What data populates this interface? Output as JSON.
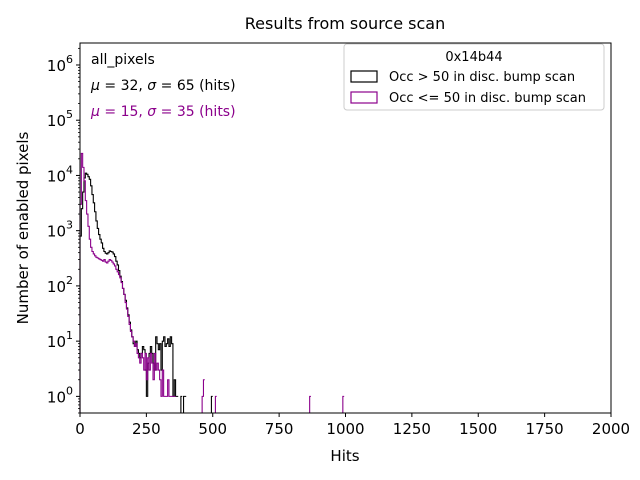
{
  "chart_data": {
    "type": "histogram",
    "title": "Results from source scan",
    "xlabel": "Hits",
    "ylabel": "Number of enabled pixels",
    "xlim": [
      0,
      2000
    ],
    "ylim": [
      0.5,
      2500000
    ],
    "yscale": "log",
    "x_ticks": [
      0,
      250,
      500,
      750,
      1000,
      1250,
      1500,
      1750,
      2000
    ],
    "x_tick_labels": [
      "0",
      "250",
      "500",
      "750",
      "1000",
      "1250",
      "1500",
      "1750",
      "2000"
    ],
    "y_ticks": [
      {
        "value": 1,
        "base": "10",
        "exp": "0"
      },
      {
        "value": 10,
        "base": "10",
        "exp": "1"
      },
      {
        "value": 100,
        "base": "10",
        "exp": "2"
      },
      {
        "value": 1000,
        "base": "10",
        "exp": "3"
      },
      {
        "value": 10000,
        "base": "10",
        "exp": "4"
      },
      {
        "value": 100000,
        "base": "10",
        "exp": "5"
      },
      {
        "value": 1000000,
        "base": "10",
        "exp": "6"
      }
    ],
    "annotations": {
      "label": "all_pixels",
      "stats_high": {
        "mu": "32",
        "sigma": "65",
        "unit": "(hits)"
      },
      "stats_low": {
        "mu": "15",
        "sigma": "35",
        "unit": "(hits)"
      }
    },
    "legend": {
      "title": "0x14b44",
      "position": "top-right"
    },
    "series": [
      {
        "name": "Occ > 50 in disc. bump scan",
        "color": "#000000",
        "bin_width": 5,
        "points": [
          [
            0,
            800
          ],
          [
            5,
            2500
          ],
          [
            10,
            5000
          ],
          [
            15,
            9000
          ],
          [
            20,
            11000
          ],
          [
            25,
            10500
          ],
          [
            30,
            9500
          ],
          [
            35,
            8500
          ],
          [
            40,
            6500
          ],
          [
            45,
            4500
          ],
          [
            50,
            3200
          ],
          [
            55,
            2200
          ],
          [
            60,
            1500
          ],
          [
            65,
            1100
          ],
          [
            70,
            850
          ],
          [
            75,
            700
          ],
          [
            80,
            600
          ],
          [
            85,
            480
          ],
          [
            90,
            420
          ],
          [
            95,
            390
          ],
          [
            100,
            380
          ],
          [
            105,
            400
          ],
          [
            110,
            430
          ],
          [
            115,
            420
          ],
          [
            120,
            410
          ],
          [
            125,
            380
          ],
          [
            130,
            340
          ],
          [
            135,
            280
          ],
          [
            140,
            240
          ],
          [
            145,
            190
          ],
          [
            150,
            150
          ],
          [
            155,
            120
          ],
          [
            160,
            90
          ],
          [
            165,
            70
          ],
          [
            170,
            55
          ],
          [
            175,
            40
          ],
          [
            180,
            30
          ],
          [
            185,
            22
          ],
          [
            190,
            16
          ],
          [
            195,
            12
          ],
          [
            200,
            9
          ],
          [
            205,
            8
          ],
          [
            210,
            10
          ],
          [
            215,
            7
          ],
          [
            220,
            6
          ],
          [
            225,
            5
          ],
          [
            230,
            6
          ],
          [
            235,
            8
          ],
          [
            240,
            7
          ],
          [
            245,
            3
          ],
          [
            250,
            1
          ],
          [
            255,
            4
          ],
          [
            260,
            6
          ],
          [
            265,
            8
          ],
          [
            270,
            6
          ],
          [
            275,
            4
          ],
          [
            280,
            3
          ],
          [
            285,
            12
          ],
          [
            290,
            9
          ],
          [
            295,
            7
          ],
          [
            300,
            9
          ],
          [
            305,
            3
          ],
          [
            310,
            10
          ],
          [
            315,
            12
          ],
          [
            320,
            8
          ],
          [
            325,
            9
          ],
          [
            330,
            11
          ],
          [
            335,
            8
          ],
          [
            340,
            12
          ],
          [
            345,
            9
          ],
          [
            350,
            1
          ],
          [
            355,
            2
          ],
          [
            360,
            1
          ],
          [
            365,
            1
          ],
          [
            380,
            1
          ],
          [
            390,
            1
          ],
          [
            395,
            1
          ],
          [
            495,
            1
          ]
        ]
      },
      {
        "name": "Occ <= 50 in disc. bump scan",
        "color": "#8b008b",
        "bin_width": 5,
        "points": [
          [
            0,
            3000
          ],
          [
            5,
            25000
          ],
          [
            10,
            14000
          ],
          [
            15,
            8000
          ],
          [
            20,
            3500
          ],
          [
            25,
            2000
          ],
          [
            30,
            1200
          ],
          [
            35,
            700
          ],
          [
            40,
            500
          ],
          [
            45,
            420
          ],
          [
            50,
            380
          ],
          [
            55,
            350
          ],
          [
            60,
            330
          ],
          [
            65,
            320
          ],
          [
            70,
            310
          ],
          [
            75,
            300
          ],
          [
            80,
            290
          ],
          [
            85,
            280
          ],
          [
            90,
            300
          ],
          [
            95,
            270
          ],
          [
            100,
            260
          ],
          [
            105,
            280
          ],
          [
            110,
            300
          ],
          [
            115,
            290
          ],
          [
            120,
            270
          ],
          [
            125,
            250
          ],
          [
            130,
            230
          ],
          [
            135,
            200
          ],
          [
            140,
            180
          ],
          [
            145,
            160
          ],
          [
            150,
            140
          ],
          [
            155,
            115
          ],
          [
            160,
            90
          ],
          [
            165,
            70
          ],
          [
            170,
            50
          ],
          [
            175,
            38
          ],
          [
            180,
            28
          ],
          [
            185,
            20
          ],
          [
            190,
            15
          ],
          [
            195,
            12
          ],
          [
            200,
            10
          ],
          [
            205,
            8
          ],
          [
            210,
            9
          ],
          [
            215,
            6
          ],
          [
            220,
            5
          ],
          [
            225,
            4
          ],
          [
            230,
            6
          ],
          [
            235,
            5
          ],
          [
            240,
            3
          ],
          [
            245,
            6
          ],
          [
            250,
            2
          ],
          [
            255,
            5
          ],
          [
            260,
            3
          ],
          [
            265,
            6
          ],
          [
            270,
            4
          ],
          [
            275,
            2
          ],
          [
            280,
            6
          ],
          [
            285,
            3
          ],
          [
            290,
            4
          ],
          [
            295,
            3
          ],
          [
            300,
            2
          ],
          [
            305,
            1
          ],
          [
            310,
            3
          ],
          [
            315,
            1
          ],
          [
            320,
            1
          ],
          [
            325,
            1
          ],
          [
            330,
            2
          ],
          [
            335,
            1
          ],
          [
            340,
            1
          ],
          [
            345,
            1
          ],
          [
            350,
            1
          ],
          [
            355,
            1
          ],
          [
            460,
            1
          ],
          [
            465,
            2
          ],
          [
            510,
            1
          ],
          [
            865,
            1
          ],
          [
            990,
            1
          ]
        ]
      }
    ]
  }
}
